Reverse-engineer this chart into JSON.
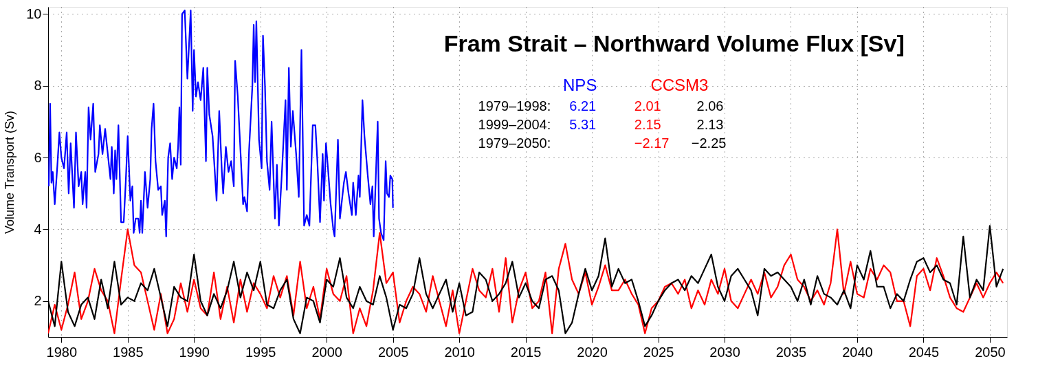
{
  "chart_data": {
    "type": "line",
    "title": "Fram Strait – Northward Volume Flux [Sv]",
    "ylabel": "Volume Transport (Sv)",
    "xlim": [
      1979,
      2051.3
    ],
    "ylim": [
      1,
      10.2
    ],
    "xticks": [
      1980,
      1985,
      1990,
      1995,
      2000,
      2005,
      2010,
      2015,
      2020,
      2025,
      2030,
      2035,
      2040,
      2045,
      2050
    ],
    "yticks": [
      2,
      4,
      6,
      8,
      10
    ],
    "grid": true,
    "legend": false,
    "line_style": "solid",
    "marker": "none",
    "annotations": [
      "1979–1998:",
      "6.21",
      "2.01",
      "2.06",
      "1999–2004:",
      "5.31",
      "2.15",
      "2.13",
      "1979–2050:",
      "−2.17",
      "−2.25"
    ],
    "series": [
      {
        "name": "NPS",
        "color": "#0000ff",
        "x": [
          1979.05,
          1979.15,
          1979.25,
          1979.35,
          1979.5,
          1979.7,
          1979.85,
          1980.0,
          1980.2,
          1980.4,
          1980.55,
          1980.7,
          1980.95,
          1981.1,
          1981.3,
          1981.5,
          1981.6,
          1981.8,
          1981.9,
          1982.05,
          1982.2,
          1982.4,
          1982.55,
          1982.8,
          1982.9,
          1983.1,
          1983.3,
          1983.5,
          1983.7,
          1983.8,
          1983.95,
          1984.05,
          1984.15,
          1984.3,
          1984.5,
          1984.7,
          1984.85,
          1985.0,
          1985.2,
          1985.35,
          1985.45,
          1985.6,
          1985.8,
          1985.9,
          1986.0,
          1986.1,
          1986.3,
          1986.5,
          1986.7,
          1986.8,
          1986.95,
          1987.1,
          1987.3,
          1987.5,
          1987.6,
          1987.8,
          1987.9,
          1988.05,
          1988.2,
          1988.35,
          1988.5,
          1988.7,
          1988.8,
          1988.9,
          1989.0,
          1989.1,
          1989.3,
          1989.5,
          1989.75,
          1989.9,
          1990.0,
          1990.15,
          1990.3,
          1990.5,
          1990.7,
          1990.9,
          1991.0,
          1991.15,
          1991.4,
          1991.7,
          1991.9,
          1992.1,
          1992.2,
          1992.4,
          1992.6,
          1992.8,
          1993.0,
          1993.1,
          1993.3,
          1993.5,
          1993.7,
          1993.8,
          1994.0,
          1994.15,
          1994.4,
          1994.5,
          1994.6,
          1994.7,
          1994.9,
          1995.1,
          1995.2,
          1995.35,
          1995.5,
          1995.7,
          1995.85,
          1996.1,
          1996.25,
          1996.4,
          1996.6,
          1996.9,
          1997.0,
          1997.15,
          1997.3,
          1997.45,
          1997.7,
          1997.9,
          1998.1,
          1998.3,
          1998.5,
          1998.7,
          1998.95,
          1999.15,
          1999.3,
          1999.5,
          1999.7,
          1999.8,
          1999.95,
          2000.1,
          2000.3,
          2000.5,
          2000.6,
          2000.85,
          2001.0,
          2001.3,
          2001.45,
          2001.65,
          2001.9,
          2002.0,
          2002.2,
          2002.4,
          2002.5,
          2002.7,
          2002.85,
          2003.1,
          2003.3,
          2003.45,
          2003.55,
          2003.85,
          2003.95,
          2004.1,
          2004.3,
          2004.45,
          2004.55,
          2004.7,
          2004.8,
          2004.95,
          2005.0
        ],
        "values": [
          5.2,
          7.5,
          5.3,
          5.6,
          4.7,
          5.8,
          6.7,
          6.0,
          5.7,
          6.7,
          5.0,
          6.4,
          4.6,
          6.7,
          5.2,
          5.6,
          4.7,
          5.6,
          4.6,
          7.4,
          6.5,
          7.5,
          5.6,
          6.1,
          6.9,
          6.1,
          6.8,
          6.1,
          5.4,
          6.3,
          5.0,
          6.2,
          5.4,
          6.9,
          4.2,
          4.2,
          5.3,
          6.6,
          4.8,
          5.2,
          3.9,
          4.3,
          4.3,
          3.9,
          4.8,
          3.9,
          5.6,
          4.6,
          5.4,
          6.8,
          7.5,
          5.9,
          5.1,
          5.2,
          4.4,
          4.8,
          3.8,
          6.0,
          6.4,
          5.4,
          6.0,
          5.7,
          6.3,
          7.4,
          5.8,
          10.0,
          10.1,
          8.2,
          10.1,
          7.3,
          9.0,
          7.7,
          8.1,
          7.6,
          8.5,
          5.9,
          8.5,
          7.2,
          6.6,
          4.8,
          7.3,
          5.6,
          5.0,
          6.3,
          5.6,
          5.9,
          5.2,
          8.7,
          7.7,
          6.2,
          4.7,
          4.9,
          4.5,
          6.2,
          8.0,
          9.7,
          8.1,
          9.8,
          6.5,
          5.7,
          9.4,
          8.0,
          5.9,
          5.1,
          7.0,
          4.3,
          5.8,
          4.1,
          5.4,
          7.6,
          5.1,
          8.5,
          6.3,
          7.3,
          6.1,
          4.9,
          9.0,
          4.1,
          4.4,
          4.1,
          6.9,
          6.9,
          5.9,
          4.2,
          6.1,
          4.8,
          6.4,
          5.7,
          4.7,
          4.0,
          3.8,
          6.5,
          4.3,
          5.3,
          5.6,
          5.0,
          4.4,
          5.3,
          4.4,
          5.5,
          4.9,
          7.6,
          6.6,
          5.5,
          4.7,
          5.2,
          3.8,
          7.0,
          4.3,
          3.9,
          3.7,
          5.9,
          5.0,
          4.9,
          5.5,
          5.4,
          4.6
        ]
      },
      {
        "name": "CCSM3",
        "color": "#ff0000",
        "x": [
          1979,
          1979.5,
          1980,
          1980.5,
          1981,
          1981.5,
          1982,
          1982.5,
          1983,
          1983.5,
          1984,
          1984.5,
          1985,
          1985.5,
          1986,
          1986.5,
          1987,
          1987.5,
          1988,
          1988.5,
          1989,
          1989.5,
          1990,
          1990.5,
          1991,
          1991.5,
          1992,
          1992.5,
          1993,
          1993.5,
          1994,
          1994.5,
          1995,
          1995.5,
          1996,
          1996.5,
          1997,
          1997.5,
          1998,
          1998.5,
          1999,
          1999.5,
          2000,
          2000.5,
          2001,
          2001.5,
          2002,
          2002.5,
          2003,
          2003.5,
          2004,
          2004.5,
          2005,
          2005.5,
          2006,
          2006.5,
          2007,
          2007.5,
          2008,
          2008.5,
          2009,
          2009.5,
          2010,
          2010.5,
          2011,
          2011.5,
          2012,
          2012.5,
          2013,
          2013.5,
          2014,
          2014.5,
          2015,
          2015.5,
          2016,
          2016.5,
          2017,
          2017.5,
          2018,
          2018.5,
          2019,
          2019.5,
          2020,
          2020.5,
          2021,
          2021.5,
          2022,
          2022.5,
          2023,
          2023.5,
          2024,
          2024.5,
          2025,
          2025.5,
          2026,
          2026.5,
          2027,
          2027.5,
          2028,
          2028.5,
          2029,
          2029.5,
          2030,
          2030.5,
          2031,
          2031.5,
          2032,
          2032.5,
          2033,
          2033.5,
          2034,
          2034.5,
          2035,
          2035.5,
          2036,
          2036.5,
          2037,
          2037.5,
          2038,
          2038.5,
          2039,
          2039.5,
          2040,
          2040.5,
          2041,
          2041.5,
          2042,
          2042.5,
          2043,
          2043.5,
          2044,
          2044.5,
          2045,
          2045.5,
          2046,
          2046.5,
          2047,
          2047.5,
          2048,
          2048.5,
          2049,
          2049.5,
          2050,
          2050.5,
          2051
        ],
        "values": [
          1.1,
          1.9,
          1.2,
          1.9,
          2.8,
          1.5,
          2.0,
          2.9,
          2.3,
          2.0,
          1.1,
          2.6,
          4.0,
          3.0,
          2.8,
          2.0,
          1.2,
          2.2,
          1.1,
          1.5,
          2.5,
          1.7,
          2.6,
          1.8,
          1.6,
          2.8,
          1.5,
          2.4,
          1.4,
          2.6,
          1.7,
          2.5,
          2.2,
          1.8,
          2.7,
          2.1,
          2.7,
          1.6,
          3.1,
          1.8,
          2.4,
          1.5,
          2.9,
          2.2,
          2.0,
          2.7,
          1.1,
          1.8,
          1.3,
          2.3,
          3.9,
          2.5,
          2.8,
          1.4,
          2.0,
          2.4,
          2.2,
          1.7,
          2.7,
          2.0,
          1.3,
          2.3,
          1.1,
          2.0,
          2.9,
          2.3,
          2.1,
          2.9,
          1.7,
          3.2,
          1.4,
          2.3,
          2.8,
          1.8,
          2.0,
          2.8,
          1.1,
          2.9,
          3.6,
          2.6,
          2.2,
          2.8,
          1.9,
          2.4,
          3.0,
          2.3,
          2.3,
          2.6,
          2.2,
          1.9,
          1.1,
          1.8,
          2.0,
          2.4,
          2.5,
          2.2,
          2.6,
          1.8,
          2.3,
          1.9,
          2.6,
          2.2,
          2.9,
          2.0,
          1.8,
          2.2,
          2.6,
          2.2,
          2.8,
          2.1,
          2.4,
          3.0,
          3.3,
          2.6,
          2.4,
          2.0,
          2.3,
          1.9,
          2.5,
          4.0,
          2.2,
          3.1,
          2.2,
          2.1,
          2.9,
          2.6,
          3.0,
          2.8,
          2.0,
          2.0,
          1.3,
          2.7,
          2.9,
          2.3,
          3.2,
          2.7,
          2.1,
          1.8,
          1.7,
          2.1,
          2.5,
          2.1,
          2.5,
          2.8,
          2.5
        ]
      },
      {
        "color": "#000000",
        "x": [
          1979,
          1979.5,
          1980,
          1980.5,
          1981,
          1981.5,
          1982,
          1982.5,
          1983,
          1983.5,
          1984,
          1984.5,
          1985,
          1985.5,
          1986,
          1986.5,
          1987,
          1987.5,
          1988,
          1988.5,
          1989,
          1989.5,
          1990,
          1990.5,
          1991,
          1991.5,
          1992,
          1992.5,
          1993,
          1993.5,
          1994,
          1994.5,
          1995,
          1995.5,
          1996,
          1996.5,
          1997,
          1997.5,
          1998,
          1998.5,
          1999,
          1999.5,
          2000,
          2000.5,
          2001,
          2001.5,
          2002,
          2002.5,
          2003,
          2003.5,
          2004,
          2004.5,
          2005,
          2005.5,
          2006,
          2006.5,
          2007,
          2007.5,
          2008,
          2008.5,
          2009,
          2009.5,
          2010,
          2010.5,
          2011,
          2011.5,
          2012,
          2012.5,
          2013,
          2013.5,
          2014,
          2014.5,
          2015,
          2015.5,
          2016,
          2016.5,
          2017,
          2017.5,
          2018,
          2018.5,
          2019,
          2019.5,
          2020,
          2020.5,
          2021,
          2021.5,
          2022,
          2022.5,
          2023,
          2023.5,
          2024,
          2024.5,
          2025,
          2025.5,
          2026,
          2026.5,
          2027,
          2027.5,
          2028,
          2028.5,
          2029,
          2029.5,
          2030,
          2030.5,
          2031,
          2031.5,
          2032,
          2032.5,
          2033,
          2033.5,
          2034,
          2034.5,
          2035,
          2035.5,
          2036,
          2036.5,
          2037,
          2037.5,
          2038,
          2038.5,
          2039,
          2039.5,
          2040,
          2040.5,
          2041,
          2041.5,
          2042,
          2042.5,
          2043,
          2043.5,
          2044,
          2044.5,
          2045,
          2045.5,
          2046,
          2046.5,
          2047,
          2047.5,
          2048,
          2048.5,
          2049,
          2049.5,
          2050,
          2050.5,
          2051
        ],
        "values": [
          2.0,
          1.3,
          3.1,
          1.7,
          1.3,
          1.9,
          2.1,
          1.5,
          2.6,
          1.8,
          3.1,
          1.9,
          2.1,
          2.0,
          2.5,
          2.3,
          2.9,
          2.1,
          1.3,
          2.4,
          2.1,
          2.0,
          3.3,
          2.0,
          1.6,
          2.2,
          1.8,
          2.3,
          3.1,
          2.1,
          2.8,
          2.3,
          3.1,
          1.9,
          1.8,
          2.3,
          2.6,
          1.5,
          1.1,
          2.1,
          2.0,
          1.4,
          2.6,
          2.4,
          3.2,
          2.1,
          1.8,
          2.4,
          2.0,
          1.9,
          2.7,
          2.1,
          1.2,
          1.9,
          1.8,
          2.2,
          3.2,
          2.2,
          1.8,
          2.2,
          2.6,
          1.7,
          2.5,
          1.6,
          1.7,
          2.8,
          2.6,
          2.0,
          2.2,
          2.5,
          3.1,
          2.1,
          2.5,
          2.0,
          1.8,
          2.6,
          2.7,
          2.3,
          1.1,
          1.4,
          2.2,
          2.9,
          2.3,
          2.7,
          3.75,
          2.4,
          2.9,
          2.5,
          2.6,
          2.0,
          1.3,
          1.6,
          2.0,
          2.3,
          2.5,
          2.6,
          2.3,
          2.7,
          2.5,
          2.9,
          3.3,
          2.4,
          2.0,
          2.7,
          2.9,
          2.6,
          2.3,
          1.6,
          2.9,
          2.7,
          2.8,
          2.6,
          2.4,
          2.0,
          2.6,
          1.9,
          2.7,
          2.2,
          2.1,
          1.9,
          2.3,
          1.8,
          3.0,
          2.6,
          3.4,
          2.4,
          2.4,
          1.8,
          2.2,
          2.0,
          2.6,
          3.1,
          3.2,
          2.8,
          3.0,
          2.6,
          2.5,
          1.9,
          3.8,
          2.1,
          2.6,
          2.3,
          4.1,
          2.4,
          2.9
        ]
      }
    ]
  }
}
